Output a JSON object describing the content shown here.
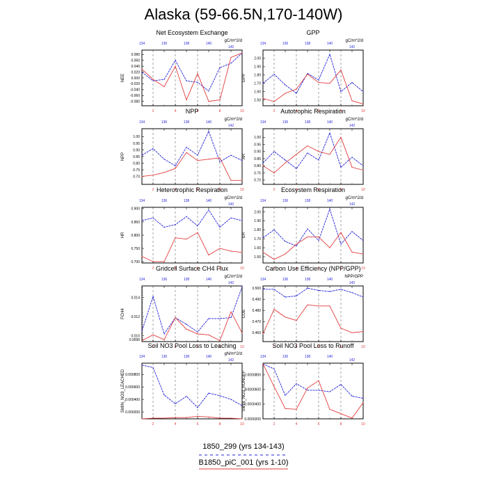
{
  "title": "Alaska (59-66.5N,170-140W)",
  "colors": {
    "blue": "#1f1fd6",
    "red": "#e23b3b",
    "axis": "#000000",
    "dash": "#666666"
  },
  "bottom_axis": {
    "ticks": [
      2,
      4,
      6,
      8,
      10
    ],
    "range": [
      1,
      10
    ]
  },
  "top_axis": {
    "ticks": [
      "134",
      "136",
      "138",
      "140",
      "142"
    ],
    "tick_values": [
      134,
      136,
      138,
      140,
      142
    ],
    "range": [
      134,
      143
    ]
  },
  "vgrid_x": [
    2,
    4,
    6,
    8
  ],
  "legend": {
    "blue_label": "1850_299 (yrs 134-143)",
    "red_label": "B1850_piC_001 (yrs 1-10)"
  },
  "chart_data": [
    {
      "type": "line",
      "title": "Net Ecosystem Exchange",
      "ylabel": "NEE",
      "units": "gC/m^2/d",
      "ylim": [
        -0.095,
        0.095
      ],
      "yticks": [
        -0.08,
        -0.06,
        -0.04,
        -0.02,
        0.0,
        0.02,
        0.04,
        0.06,
        0.08
      ],
      "yticklabels": [
        "-0.080",
        "-0.060",
        "-0.040",
        "-0.020",
        "0.000",
        "0.020",
        "0.040",
        "0.060",
        "0.080"
      ],
      "x": [
        1,
        2,
        3,
        4,
        5,
        6,
        7,
        8,
        9,
        10
      ],
      "series": [
        {
          "name": "1850_299 (yrs 134-143)",
          "color": "blue",
          "values": [
            0.02,
            -0.01,
            -0.005,
            0.06,
            -0.01,
            -0.015,
            -0.045,
            0.035,
            0.05,
            0.085
          ]
        },
        {
          "name": "B1850_piC_001 (yrs 1-10)",
          "color": "red",
          "values": [
            0.03,
            -0.005,
            -0.03,
            0.04,
            -0.075,
            0.015,
            -0.08,
            -0.075,
            0.07,
            0.085
          ]
        }
      ]
    },
    {
      "type": "line",
      "title": "GPP",
      "ylabel": "GPP",
      "units": "gC/m^2/d",
      "ylim": [
        1.43,
        2.1
      ],
      "yticks": [
        1.5,
        1.6,
        1.7,
        1.8,
        1.9,
        2.0
      ],
      "yticklabels": [
        "1.50",
        "1.60",
        "1.70",
        "1.80",
        "1.90",
        "2.00"
      ],
      "x": [
        1,
        2,
        3,
        4,
        5,
        6,
        7,
        8,
        9,
        10
      ],
      "series": [
        {
          "name": "1850_299 (yrs 134-143)",
          "color": "blue",
          "values": [
            1.7,
            1.81,
            1.68,
            1.58,
            1.82,
            1.74,
            2.05,
            1.6,
            1.71,
            1.6
          ]
        },
        {
          "name": "B1850_piC_001 (yrs 1-10)",
          "color": "red",
          "values": [
            1.52,
            1.48,
            1.58,
            1.63,
            1.81,
            1.71,
            1.7,
            1.86,
            1.49,
            1.45
          ]
        }
      ]
    },
    {
      "type": "line",
      "title": "NPP",
      "ylabel": "NPP",
      "units": "gC/m^2/d",
      "ylim": [
        0.64,
        1.06
      ],
      "yticks": [
        0.7,
        0.75,
        0.8,
        0.85,
        0.9,
        0.95,
        1.0
      ],
      "yticklabels": [
        "0.70",
        "0.75",
        "0.80",
        "0.85",
        "0.90",
        "0.95",
        "1.00"
      ],
      "x": [
        1,
        2,
        3,
        4,
        5,
        6,
        7,
        8,
        9,
        10
      ],
      "series": [
        {
          "name": "1850_299 (yrs 134-143)",
          "color": "blue",
          "values": [
            0.86,
            0.91,
            0.83,
            0.78,
            0.92,
            0.86,
            1.04,
            0.81,
            0.86,
            0.82
          ]
        },
        {
          "name": "B1850_piC_001 (yrs 1-10)",
          "color": "red",
          "values": [
            0.7,
            0.71,
            0.73,
            0.76,
            0.88,
            0.82,
            0.83,
            0.84,
            0.67,
            0.67
          ]
        }
      ]
    },
    {
      "type": "line",
      "title": "Autotrophic Respiration",
      "ylabel": "AR",
      "units": "gC/m^2/d",
      "ylim": [
        0.67,
        1.06
      ],
      "yticks": [
        0.7,
        0.75,
        0.8,
        0.85,
        0.9,
        0.95,
        1.0
      ],
      "yticklabels": [
        "0.70",
        "0.75",
        "0.80",
        "0.85",
        "0.90",
        "0.95",
        "1.00"
      ],
      "x": [
        1,
        2,
        3,
        4,
        5,
        6,
        7,
        8,
        9,
        10
      ],
      "series": [
        {
          "name": "1850_299 (yrs 134-143)",
          "color": "blue",
          "values": [
            0.82,
            0.9,
            0.84,
            0.78,
            0.89,
            0.84,
            1.03,
            0.79,
            0.86,
            0.8
          ]
        },
        {
          "name": "B1850_piC_001 (yrs 1-10)",
          "color": "red",
          "values": [
            0.8,
            0.75,
            0.82,
            0.88,
            0.94,
            0.9,
            0.88,
            1.0,
            0.79,
            0.77
          ]
        }
      ]
    },
    {
      "type": "line",
      "title": "Heterotrophic Respiration",
      "ylabel": "HR",
      "units": "gC/m^2/d",
      "ylim": [
        0.695,
        0.905
      ],
      "yticks": [
        0.7,
        0.75,
        0.8,
        0.85,
        0.9
      ],
      "yticklabels": [
        "0.700",
        "0.750",
        "0.800",
        "0.850",
        "0.900"
      ],
      "x": [
        1,
        2,
        3,
        4,
        5,
        6,
        7,
        8,
        9,
        10
      ],
      "series": [
        {
          "name": "1850_299 (yrs 134-143)",
          "color": "blue",
          "values": [
            0.855,
            0.865,
            0.83,
            0.84,
            0.87,
            0.835,
            0.895,
            0.83,
            0.865,
            0.855
          ]
        },
        {
          "name": "B1850_piC_001 (yrs 1-10)",
          "color": "red",
          "values": [
            0.72,
            0.7,
            0.7,
            0.79,
            0.785,
            0.81,
            0.725,
            0.75,
            0.74,
            0.735
          ]
        }
      ]
    },
    {
      "type": "line",
      "title": "Ecosystem Respiration",
      "ylabel": "ER",
      "units": "gC/m^2/d",
      "ylim": [
        1.43,
        2.05
      ],
      "yticks": [
        1.5,
        1.6,
        1.7,
        1.8,
        1.9,
        2.0
      ],
      "yticklabels": [
        "1.50",
        "1.60",
        "1.70",
        "1.80",
        "1.90",
        "2.00"
      ],
      "x": [
        1,
        2,
        3,
        4,
        5,
        6,
        7,
        8,
        9,
        10
      ],
      "series": [
        {
          "name": "1850_299 (yrs 134-143)",
          "color": "blue",
          "values": [
            1.71,
            1.8,
            1.67,
            1.62,
            1.81,
            1.68,
            2.03,
            1.64,
            1.78,
            1.68
          ]
        },
        {
          "name": "B1850_piC_001 (yrs 1-10)",
          "color": "red",
          "values": [
            1.55,
            1.47,
            1.53,
            1.64,
            1.72,
            1.72,
            1.6,
            1.77,
            1.55,
            1.53
          ]
        }
      ]
    },
    {
      "type": "line",
      "title": "Gridcell Surface CH4 Flux",
      "ylabel": "FCH4",
      "units": "gC/m^2/d",
      "ylim": [
        0.0094,
        0.0152
      ],
      "yticks": [
        0.0096,
        0.0098,
        0.01,
        0.0102,
        0.0104,
        0.0106,
        0.0108,
        0.011,
        0.0112,
        0.0114,
        0.0116,
        0.0118,
        0.012,
        0.0122,
        0.0124,
        0.0126,
        0.0128,
        0.013,
        0.0132,
        0.0134,
        0.0136,
        0.0138,
        0.014,
        0.0142,
        0.0144,
        0.0146,
        0.0148,
        0.015
      ],
      "yticklabels": [
        "0.0096",
        "",
        "0.010",
        "",
        "",
        "",
        "",
        "",
        "",
        "",
        "",
        "",
        "0.012",
        "",
        "",
        "",
        "",
        "",
        "",
        "",
        "",
        "",
        "0.014",
        "",
        "",
        "",
        "",
        ""
      ],
      "x": [
        1,
        2,
        3,
        4,
        5,
        6,
        7,
        8,
        9,
        10
      ],
      "series": [
        {
          "name": "1850_299 (yrs 134-143)",
          "color": "blue",
          "values": [
            0.0105,
            0.0141,
            0.0102,
            0.0119,
            0.0112,
            0.0104,
            0.0118,
            0.0118,
            0.0119,
            0.0151
          ]
        },
        {
          "name": "B1850_piC_001 (yrs 1-10)",
          "color": "red",
          "values": [
            0.0095,
            0.0101,
            0.0096,
            0.0119,
            0.0107,
            0.0102,
            0.0101,
            0.0095,
            0.0125,
            0.0103
          ]
        }
      ]
    },
    {
      "type": "line",
      "title": "Carbon Use Efficiency (NPP/GPP)",
      "ylabel": "CUE",
      "units": "NPP/GPP",
      "ylim": [
        0.452,
        0.502
      ],
      "yticks": [
        0.46,
        0.47,
        0.48,
        0.49,
        0.5
      ],
      "yticklabels": [
        "0.460",
        "0.470",
        "0.480",
        "0.490",
        "0.500"
      ],
      "x": [
        1,
        2,
        3,
        4,
        5,
        6,
        7,
        8,
        9,
        10
      ],
      "series": [
        {
          "name": "1850_299 (yrs 134-143)",
          "color": "blue",
          "values": [
            0.499,
            0.499,
            0.492,
            0.493,
            0.5,
            0.498,
            0.497,
            0.499,
            0.496,
            0.492
          ]
        },
        {
          "name": "B1850_piC_001 (yrs 1-10)",
          "color": "red",
          "values": [
            0.459,
            0.481,
            0.474,
            0.471,
            0.485,
            0.484,
            0.484,
            0.464,
            0.46,
            0.461
          ]
        }
      ]
    },
    {
      "type": "line",
      "title": "Soil NO3 Pool Loss to Leaching",
      "ylabel": "SMIN_NO3_LEACHED",
      "units": "gN/m^2/d",
      "ylim": [
        9e-05,
        0.00098
      ],
      "yticks": [
        0.0002,
        0.0004,
        0.0006,
        0.0008
      ],
      "yticklabels": [
        "0.000200",
        "0.000400",
        "0.000600",
        "0.000800"
      ],
      "x": [
        1,
        2,
        3,
        4,
        5,
        6,
        7,
        8,
        9,
        10
      ],
      "series": [
        {
          "name": "1850_299 (yrs 134-143)",
          "color": "blue",
          "values": [
            0.00095,
            0.00091,
            0.00047,
            0.00033,
            0.00045,
            0.00027,
            0.0005,
            0.00046,
            0.0004,
            0.0003
          ]
        },
        {
          "name": "B1850_piC_001 (yrs 1-10)",
          "color": "red",
          "values": [
            9e-05,
            0.0001,
            0.0001,
            0.00011,
            0.00011,
            0.00013,
            0.00012,
            0.0001,
            0.0001,
            9e-05
          ]
        }
      ]
    },
    {
      "type": "line",
      "title": "Soil NO3 Pool Loss to Runoff",
      "ylabel": "SMIN_NO3_RUNOFF",
      "units": "",
      "ylim": [
        2e-05,
        9.6e-05
      ],
      "yticks": [
        2e-05,
        4e-05,
        6e-05,
        8e-05
      ],
      "yticklabels": [
        "0.0000200",
        "0.0000400",
        "0.0000600",
        "0.0000800"
      ],
      "x": [
        1,
        2,
        3,
        4,
        5,
        6,
        7,
        8,
        9,
        10
      ],
      "series": [
        {
          "name": "1850_299 (yrs 134-143)",
          "color": "blue",
          "values": [
            9.5e-05,
            8.8e-05,
            5.2e-05,
            6.8e-05,
            5.9e-05,
            5.9e-05,
            5.7e-05,
            6.7e-05,
            5.1e-05,
            4.8e-05
          ]
        },
        {
          "name": "B1850_piC_001 (yrs 1-10)",
          "color": "red",
          "values": [
            9.5e-05,
            6.4e-05,
            3.4e-05,
            3.3e-05,
            6.2e-05,
            7.2e-05,
            3.3e-05,
            2.7e-05,
            2.1e-05,
            4.2e-05
          ]
        }
      ]
    }
  ]
}
